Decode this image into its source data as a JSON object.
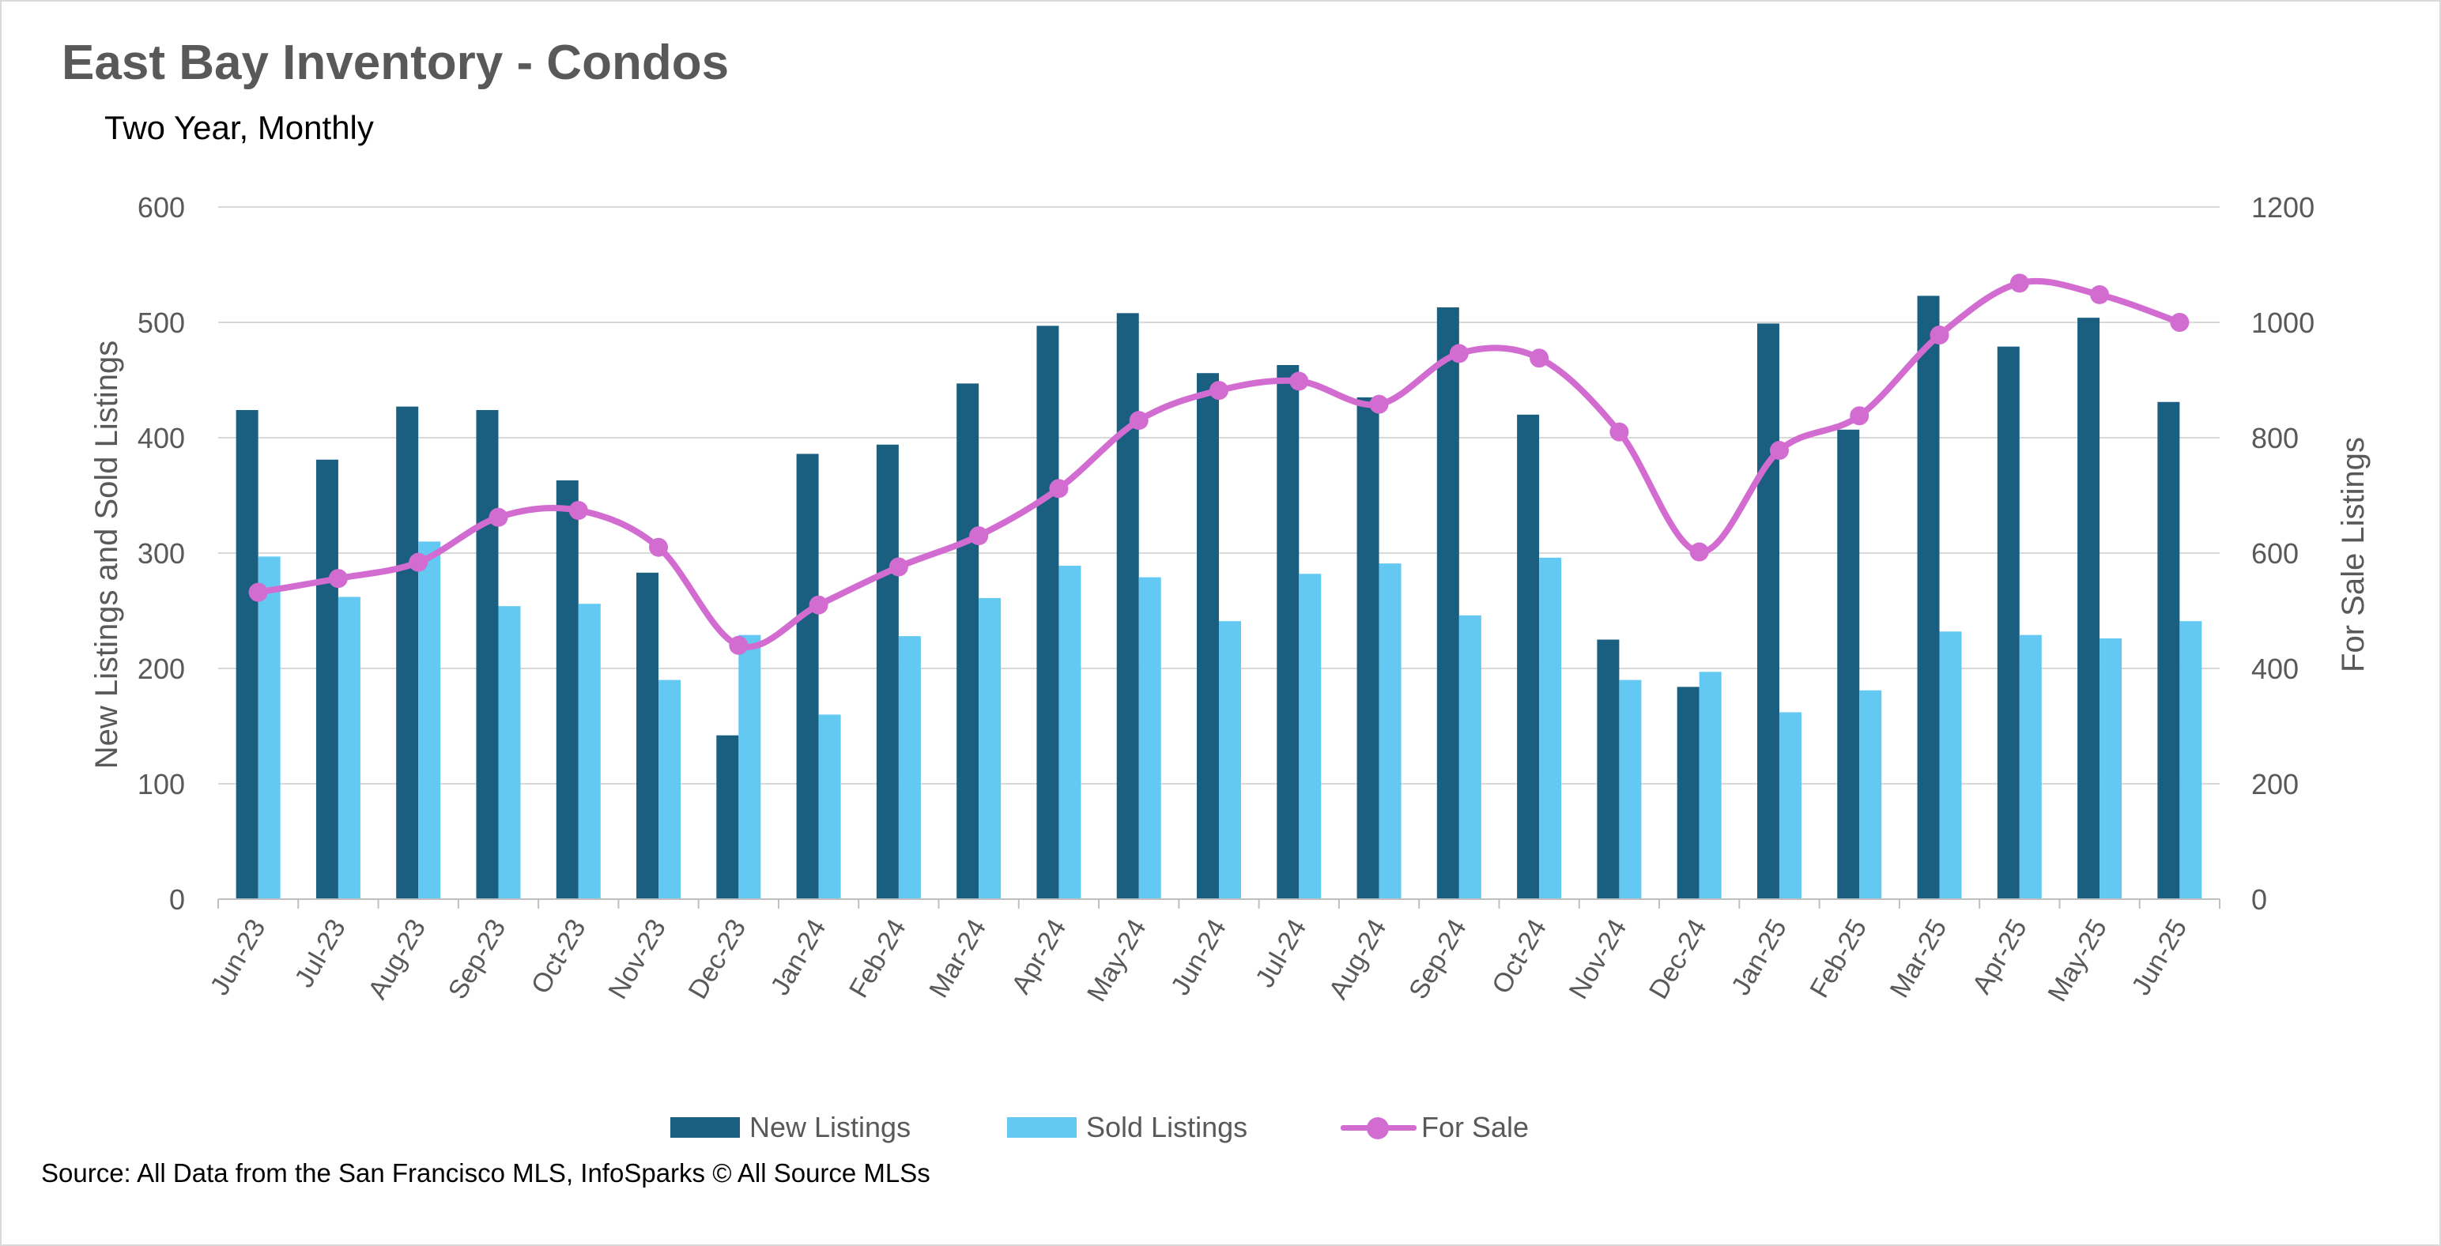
{
  "title": "East Bay Inventory - Condos",
  "subtitle": "Two Year, Monthly",
  "source": "Source: All Data from the San Francisco MLS, InfoSparks © All Source MLSs",
  "colors": {
    "new_listings": "#1a5f80",
    "sold_listings": "#63c8f2",
    "for_sale": "#d36cd1",
    "grid": "#d9d9d9",
    "text": "#595959"
  },
  "chart_data": {
    "type": "bar",
    "title": "East Bay Inventory - Condos",
    "subtitle": "Two Year, Monthly",
    "ylabel": "New Listings and Sold Listings",
    "y2label": "For Sale Listings",
    "ylim": [
      0,
      600
    ],
    "y2lim": [
      0,
      1200
    ],
    "yticks": [
      "0",
      "100",
      "200",
      "300",
      "400",
      "500",
      "600"
    ],
    "y2ticks": [
      "0",
      "200",
      "400",
      "600",
      "800",
      "1000",
      "1200"
    ],
    "grid": true,
    "legend_position": "bottom",
    "categories": [
      "Jun-23",
      "Jul-23",
      "Aug-23",
      "Sep-23",
      "Oct-23",
      "Nov-23",
      "Dec-23",
      "Jan-24",
      "Feb-24",
      "Mar-24",
      "Apr-24",
      "May-24",
      "Jun-24",
      "Jul-24",
      "Aug-24",
      "Sep-24",
      "Oct-24",
      "Nov-24",
      "Dec-24",
      "Jan-25",
      "Feb-25",
      "Mar-25",
      "Apr-25",
      "May-25",
      "Jun-25"
    ],
    "series": [
      {
        "name": "New Listings",
        "type": "bar",
        "axis": "left",
        "values": [
          424,
          381,
          427,
          424,
          363,
          283,
          142,
          386,
          394,
          447,
          497,
          508,
          456,
          463,
          435,
          513,
          420,
          225,
          184,
          499,
          407,
          523,
          479,
          504,
          431
        ]
      },
      {
        "name": "Sold Listings",
        "type": "bar",
        "axis": "left",
        "values": [
          297,
          262,
          310,
          254,
          256,
          190,
          229,
          160,
          228,
          261,
          289,
          279,
          241,
          282,
          291,
          246,
          296,
          190,
          197,
          162,
          181,
          232,
          229,
          226,
          241
        ]
      },
      {
        "name": "For Sale",
        "type": "line",
        "axis": "right",
        "smooth": true,
        "values": [
          532,
          556,
          584,
          662,
          674,
          610,
          440,
          510,
          576,
          630,
          712,
          830,
          882,
          898,
          858,
          946,
          938,
          810,
          602,
          778,
          838,
          978,
          1068,
          1048,
          1000
        ]
      }
    ]
  }
}
